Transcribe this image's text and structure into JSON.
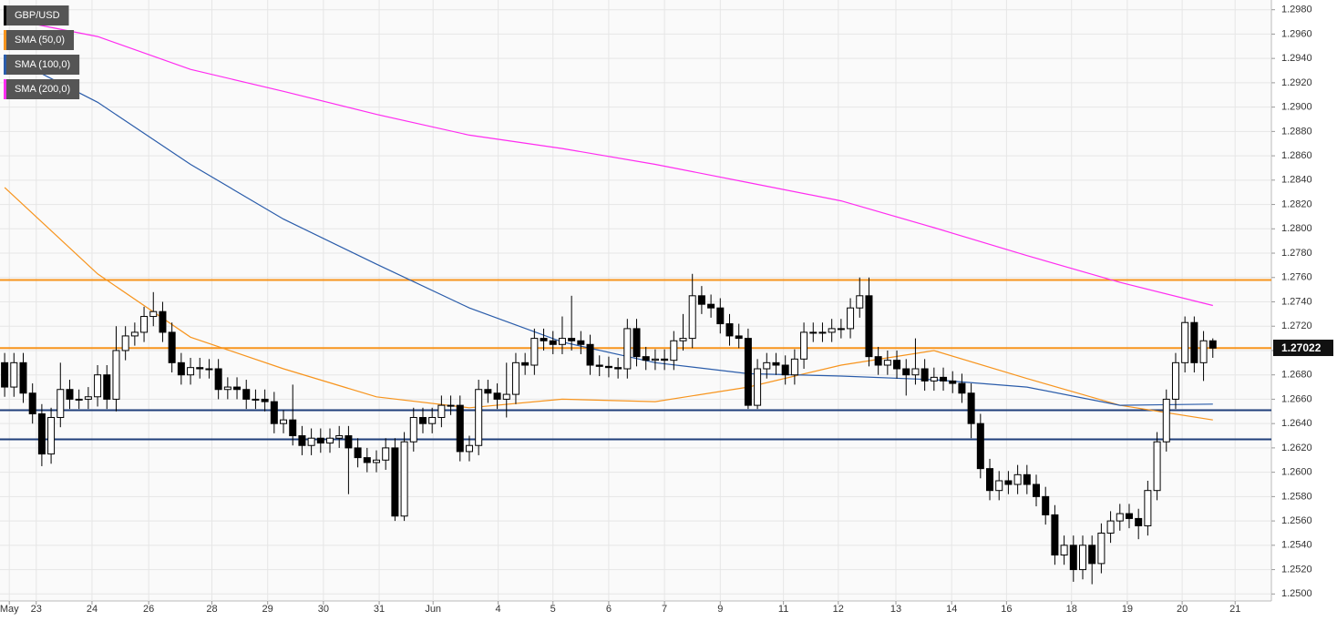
{
  "chart_data": {
    "type": "candlestick",
    "series": [
      {
        "name": "GBP/USD",
        "color": "#000000"
      },
      {
        "name": "SMA (50,0)",
        "color": "#f7941d",
        "x": [
          0,
          10,
          20,
          30,
          40,
          50,
          60,
          70,
          80,
          90,
          100,
          110,
          120,
          130
        ],
        "values": [
          1.2834,
          1.2763,
          1.2711,
          1.2685,
          1.2662,
          1.2653,
          1.266,
          1.2658,
          1.267,
          1.2688,
          1.27,
          1.2677,
          1.2655,
          1.2643
        ]
      },
      {
        "name": "SMA (100,0)",
        "color": "#2a5caa",
        "x": [
          0,
          10,
          20,
          30,
          40,
          50,
          60,
          70,
          80,
          90,
          100,
          110,
          120,
          130
        ],
        "values": [
          1.2943,
          1.2904,
          1.2853,
          1.2808,
          1.2771,
          1.2735,
          1.2707,
          1.269,
          1.2681,
          1.2679,
          1.2676,
          1.267,
          1.2655,
          1.2656
        ]
      },
      {
        "name": "SMA (200,0)",
        "color": "#ff2cf0",
        "x": [
          0,
          10,
          20,
          30,
          40,
          50,
          60,
          70,
          80,
          90,
          100,
          110,
          120,
          130
        ],
        "values": [
          1.2973,
          1.2958,
          1.2931,
          1.2913,
          1.2894,
          1.2877,
          1.2866,
          1.2853,
          1.2838,
          1.2823,
          1.2801,
          1.2778,
          1.2756,
          1.2737
        ]
      }
    ],
    "open": [
      1.269,
      1.267,
      1.269,
      1.2665,
      1.2648,
      1.2615,
      1.2645,
      1.2668,
      1.266,
      1.266,
      1.2662,
      1.268,
      1.266,
      1.27,
      1.2712,
      1.2715,
      1.2728,
      1.2732,
      1.2715,
      1.269,
      1.268,
      1.2686,
      1.2685,
      1.2685,
      1.2668,
      1.267,
      1.2668,
      1.266,
      1.266,
      1.2658,
      1.264,
      1.2643,
      1.263,
      1.2622,
      1.2628,
      1.2624,
      1.2628,
      1.263,
      1.262,
      1.2612,
      1.2608,
      1.261,
      1.262,
      1.2564,
      1.2625,
      1.2645,
      1.264,
      1.2645,
      1.2655,
      1.2655,
      1.2617,
      1.2622,
      1.2668,
      1.2665,
      1.266,
      1.2664,
      1.269,
      1.2688,
      1.271,
      1.2708,
      1.2705,
      1.271,
      1.2708,
      1.2705,
      1.2688,
      1.2687,
      1.2686,
      1.2685,
      1.2718,
      1.2695,
      1.2692,
      1.2693,
      1.2692,
      1.2708,
      1.271,
      1.2745,
      1.2738,
      1.2735,
      1.2722,
      1.2712,
      1.271,
      1.2655,
      1.2685,
      1.269,
      1.2688,
      1.268,
      1.2693,
      1.2715,
      1.2715,
      1.2715,
      1.2718,
      1.2718,
      1.2735,
      1.2745,
      1.2695,
      1.2688,
      1.2692,
      1.2685,
      1.268,
      1.2685,
      1.2675,
      1.2678,
      1.2675,
      1.2673,
      1.2665,
      1.264,
      1.2603,
      1.2585,
      1.2593,
      1.259,
      1.2598,
      1.259,
      1.258,
      1.2565,
      1.2532,
      1.254,
      1.252,
      1.254,
      1.2525,
      1.255,
      1.256,
      1.2566,
      1.2562,
      1.2556,
      1.2585,
      1.2625,
      1.266,
      1.269,
      1.2723,
      1.269,
      1.2708
    ],
    "high": [
      1.2698,
      1.2698,
      1.2698,
      1.2673,
      1.2656,
      1.2653,
      1.269,
      1.2676,
      1.2668,
      1.267,
      1.2688,
      1.2688,
      1.272,
      1.272,
      1.2723,
      1.2736,
      1.2748,
      1.274,
      1.2723,
      1.2698,
      1.2694,
      1.2694,
      1.2693,
      1.2693,
      1.2678,
      1.2678,
      1.2676,
      1.2668,
      1.2668,
      1.2666,
      1.2651,
      1.2672,
      1.2638,
      1.2636,
      1.2636,
      1.2636,
      1.2638,
      1.2638,
      1.2628,
      1.262,
      1.2618,
      1.2628,
      1.2628,
      1.2633,
      1.2653,
      1.2653,
      1.2653,
      1.2663,
      1.2663,
      1.2663,
      1.263,
      1.2676,
      1.2676,
      1.2673,
      1.269,
      1.2698,
      1.2698,
      1.2718,
      1.2718,
      1.2716,
      1.2728,
      1.2745,
      1.2716,
      1.2713,
      1.2696,
      1.2695,
      1.2694,
      1.2726,
      1.2726,
      1.2703,
      1.2701,
      1.2701,
      1.2716,
      1.273,
      1.2763,
      1.2753,
      1.2746,
      1.2743,
      1.273,
      1.2722,
      1.2718,
      1.2693,
      1.2698,
      1.2698,
      1.2696,
      1.2701,
      1.2723,
      1.2723,
      1.2723,
      1.2726,
      1.2726,
      1.2743,
      1.276,
      1.276,
      1.2703,
      1.27,
      1.27,
      1.2693,
      1.271,
      1.2693,
      1.2686,
      1.2686,
      1.2683,
      1.2681,
      1.2673,
      1.2648,
      1.2611,
      1.2601,
      1.2601,
      1.2606,
      1.2606,
      1.2598,
      1.2588,
      1.2573,
      1.2548,
      1.2548,
      1.2548,
      1.2548,
      1.2558,
      1.2568,
      1.2574,
      1.2574,
      1.257,
      1.2593,
      1.2633,
      1.2668,
      1.2698,
      1.2728,
      1.2728,
      1.2716,
      1.271
    ],
    "low": [
      1.2662,
      1.2662,
      1.2657,
      1.264,
      1.2605,
      1.2607,
      1.2637,
      1.2652,
      1.2652,
      1.2652,
      1.2654,
      1.2652,
      1.265,
      1.2692,
      1.2704,
      1.2707,
      1.272,
      1.2707,
      1.2682,
      1.2672,
      1.2672,
      1.2677,
      1.2677,
      1.266,
      1.266,
      1.266,
      1.2652,
      1.2652,
      1.265,
      1.2632,
      1.2632,
      1.2622,
      1.2614,
      1.2614,
      1.2616,
      1.2616,
      1.262,
      1.2582,
      1.2604,
      1.26,
      1.26,
      1.2602,
      1.256,
      1.256,
      1.2617,
      1.2632,
      1.2632,
      1.2637,
      1.2647,
      1.2609,
      1.2609,
      1.2614,
      1.2657,
      1.2652,
      1.2645,
      1.2656,
      1.268,
      1.268,
      1.27,
      1.2697,
      1.2697,
      1.27,
      1.2697,
      1.268,
      1.2679,
      1.2678,
      1.2677,
      1.2677,
      1.2687,
      1.2684,
      1.2684,
      1.2684,
      1.2684,
      1.27,
      1.2702,
      1.273,
      1.2727,
      1.2714,
      1.2704,
      1.2702,
      1.2652,
      1.2652,
      1.2677,
      1.268,
      1.2672,
      1.2672,
      1.2685,
      1.2707,
      1.2707,
      1.2707,
      1.271,
      1.271,
      1.2727,
      1.2687,
      1.268,
      1.268,
      1.2677,
      1.2663,
      1.2672,
      1.2667,
      1.2667,
      1.2667,
      1.2665,
      1.2657,
      1.2628,
      1.2595,
      1.2577,
      1.2577,
      1.2582,
      1.2582,
      1.2582,
      1.2572,
      1.2557,
      1.2524,
      1.2524,
      1.251,
      1.2512,
      1.2508,
      1.2517,
      1.2542,
      1.2552,
      1.2554,
      1.2545,
      1.2548,
      1.2577,
      1.2617,
      1.2652,
      1.2682,
      1.2682,
      1.2675,
      1.2694
    ],
    "close": [
      1.267,
      1.269,
      1.2665,
      1.2648,
      1.2615,
      1.2645,
      1.2668,
      1.266,
      1.266,
      1.2662,
      1.268,
      1.266,
      1.27,
      1.2712,
      1.2715,
      1.2728,
      1.2732,
      1.2715,
      1.269,
      1.268,
      1.2686,
      1.2685,
      1.2685,
      1.2668,
      1.267,
      1.2668,
      1.266,
      1.266,
      1.2658,
      1.264,
      1.2643,
      1.263,
      1.2622,
      1.2628,
      1.2624,
      1.2628,
      1.263,
      1.262,
      1.2612,
      1.2608,
      1.261,
      1.262,
      1.2564,
      1.2625,
      1.2645,
      1.264,
      1.2645,
      1.2655,
      1.2655,
      1.2617,
      1.2622,
      1.2668,
      1.2665,
      1.266,
      1.2664,
      1.269,
      1.2688,
      1.271,
      1.2708,
      1.2705,
      1.271,
      1.2708,
      1.2705,
      1.2688,
      1.2687,
      1.2686,
      1.2685,
      1.2718,
      1.2695,
      1.2692,
      1.2693,
      1.2692,
      1.2708,
      1.271,
      1.2745,
      1.2738,
      1.2735,
      1.2722,
      1.2712,
      1.271,
      1.2655,
      1.2685,
      1.269,
      1.2688,
      1.268,
      1.2693,
      1.2715,
      1.2715,
      1.2715,
      1.2718,
      1.2718,
      1.2735,
      1.2745,
      1.2695,
      1.2688,
      1.2692,
      1.2685,
      1.268,
      1.2685,
      1.2675,
      1.2678,
      1.2675,
      1.2673,
      1.2665,
      1.264,
      1.2603,
      1.2585,
      1.2593,
      1.259,
      1.2598,
      1.259,
      1.258,
      1.2565,
      1.2532,
      1.254,
      1.252,
      1.254,
      1.2525,
      1.255,
      1.256,
      1.2566,
      1.2562,
      1.2556,
      1.2585,
      1.2625,
      1.266,
      1.269,
      1.2723,
      1.269,
      1.2708,
      1.2702
    ],
    "levels": [
      {
        "value": 1.2758,
        "color": "#f7941d"
      },
      {
        "value": 1.2702,
        "color": "#f7941d"
      },
      {
        "value": 1.2651,
        "color": "#1f3f7a"
      },
      {
        "value": 1.2627,
        "color": "#1f3f7a"
      }
    ],
    "last_price": 1.27022,
    "xlim": [
      -0.5,
      136.3
    ],
    "xticks": [
      {
        "value": 0.5,
        "label": "May"
      },
      {
        "value": 3.4,
        "label": "23"
      },
      {
        "value": 9.4,
        "label": "24"
      },
      {
        "value": 15.5,
        "label": "26"
      },
      {
        "value": 22.3,
        "label": "28"
      },
      {
        "value": 28.3,
        "label": "29"
      },
      {
        "value": 34.3,
        "label": "30"
      },
      {
        "value": 40.3,
        "label": "31"
      },
      {
        "value": 46.1,
        "label": "Jun"
      },
      {
        "value": 53.1,
        "label": "4"
      },
      {
        "value": 59,
        "label": "5"
      },
      {
        "value": 65,
        "label": "6"
      },
      {
        "value": 71,
        "label": "7"
      },
      {
        "value": 77,
        "label": "9"
      },
      {
        "value": 83.8,
        "label": "11"
      },
      {
        "value": 89.7,
        "label": "12"
      },
      {
        "value": 95.9,
        "label": "13"
      },
      {
        "value": 101.9,
        "label": "14"
      },
      {
        "value": 107.8,
        "label": "16"
      },
      {
        "value": 114.8,
        "label": "18"
      },
      {
        "value": 120.8,
        "label": "19"
      },
      {
        "value": 126.7,
        "label": "20"
      },
      {
        "value": 132.4,
        "label": "21"
      }
    ],
    "ylim": [
      1.2492,
      1.2988
    ],
    "yticks": [
      {
        "value": 1.25,
        "label": "1.2500"
      },
      {
        "value": 1.252,
        "label": "1.2520"
      },
      {
        "value": 1.254,
        "label": "1.2540"
      },
      {
        "value": 1.256,
        "label": "1.2560"
      },
      {
        "value": 1.258,
        "label": "1.2580"
      },
      {
        "value": 1.26,
        "label": "1.2600"
      },
      {
        "value": 1.262,
        "label": "1.2620"
      },
      {
        "value": 1.264,
        "label": "1.2640"
      },
      {
        "value": 1.266,
        "label": "1.2660"
      },
      {
        "value": 1.268,
        "label": "1.2680"
      },
      {
        "value": 1.27,
        "label": "1.2700"
      },
      {
        "value": 1.272,
        "label": "1.2720"
      },
      {
        "value": 1.274,
        "label": "1.2740"
      },
      {
        "value": 1.276,
        "label": "1.2760"
      },
      {
        "value": 1.278,
        "label": "1.2780"
      },
      {
        "value": 1.28,
        "label": "1.2800"
      },
      {
        "value": 1.282,
        "label": "1.2820"
      },
      {
        "value": 1.284,
        "label": "1.2840"
      },
      {
        "value": 1.286,
        "label": "1.2860"
      },
      {
        "value": 1.288,
        "label": "1.2880"
      },
      {
        "value": 1.29,
        "label": "1.2900"
      },
      {
        "value": 1.292,
        "label": "1.2920"
      },
      {
        "value": 1.294,
        "label": "1.2940"
      },
      {
        "value": 1.296,
        "label": "1.2960"
      },
      {
        "value": 1.298,
        "label": "1.2980"
      }
    ],
    "grid": true
  }
}
